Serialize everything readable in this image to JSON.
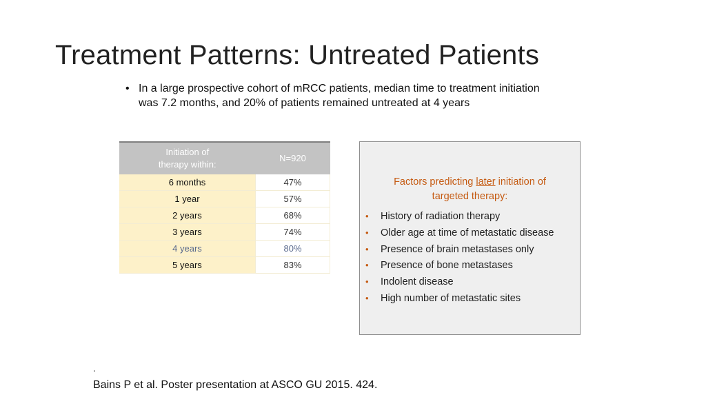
{
  "slide": {
    "title": "Treatment Patterns: Untreated Patients",
    "bullet": {
      "marker": "•",
      "line1": "In a large prospective cohort of mRCC patients, median time to treatment initiation",
      "line2": "was 7.2 months, and 20% of patients remained untreated at 4 years"
    }
  },
  "table": {
    "header": {
      "col1_line1": "Initiation of",
      "col1_line2": "therapy within:",
      "col2": "N=920"
    },
    "rows": [
      {
        "label": "6 months",
        "value": "47%"
      },
      {
        "label": "1 year",
        "value": "57%"
      },
      {
        "label": "2 years",
        "value": "68%"
      },
      {
        "label": "3 years",
        "value": "74%"
      },
      {
        "label": "4 years",
        "value": "80%"
      },
      {
        "label": "5 years",
        "value": "83%"
      }
    ],
    "highlight_color": "#5b6b8e"
  },
  "factors": {
    "heading_pre": "Factors predicting ",
    "heading_emph": "later",
    "heading_post": " initiation of",
    "heading_line2": "targeted therapy:",
    "bullet_marker": "•",
    "items": [
      "History of radiation therapy",
      "Older age at time of metastatic disease",
      "Presence of brain metastases only",
      "Presence of bone metastases",
      "Indolent disease",
      "High number of metastatic sites"
    ],
    "accent_color": "#c55a11"
  },
  "footer": {
    "dot": ".",
    "citation": "Bains P et al. Poster presentation at ASCO GU 2015. 424."
  }
}
